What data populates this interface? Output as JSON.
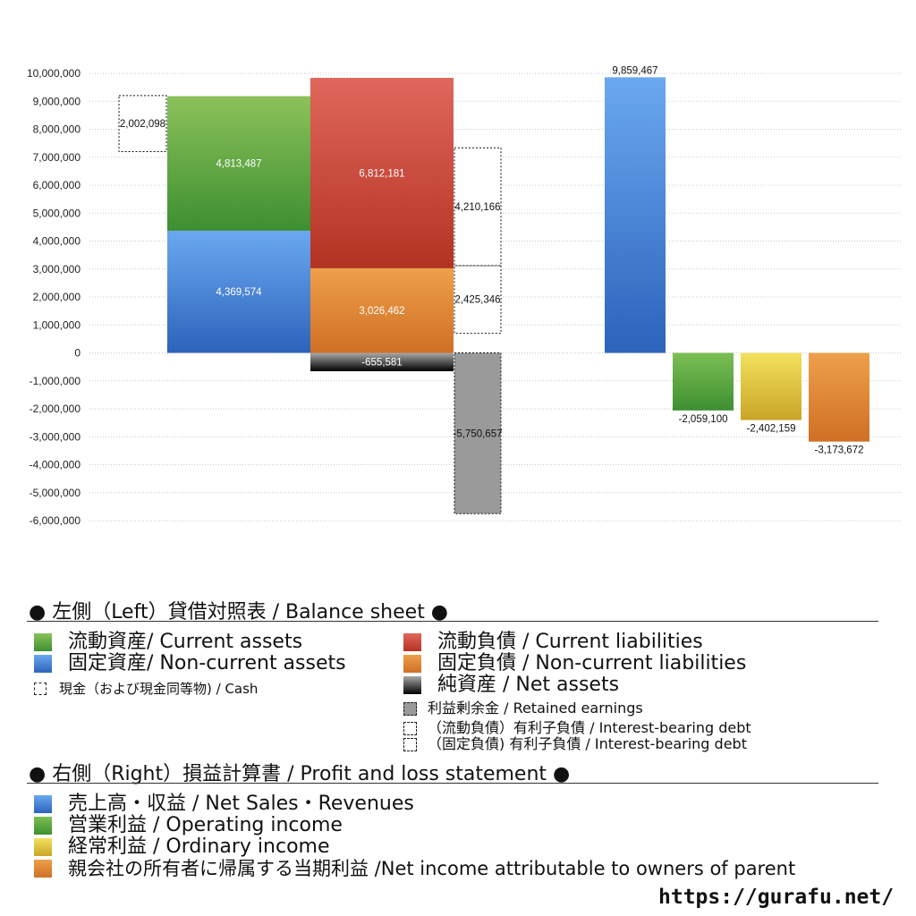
{
  "chart_data": {
    "type": "bar",
    "ylim": [
      -6000000,
      10000000
    ],
    "ytick_step": 1000000,
    "grid": true,
    "groups": [
      {
        "name": "左側 (Left) 貸借対照表 / Balance sheet",
        "stacks": [
          {
            "id": "cash",
            "segments": [
              {
                "series": "cash",
                "value": 2002098,
                "base": 7200000,
                "label": "2,002,098"
              }
            ]
          },
          {
            "id": "assets",
            "segments": [
              {
                "series": "noncurrent_assets",
                "value": 4369574,
                "base": 0,
                "label": "4,369,574"
              },
              {
                "series": "current_assets",
                "value": 4813487,
                "base": 4369574,
                "label": "4,813,487"
              }
            ]
          },
          {
            "id": "liabilities",
            "segments": [
              {
                "series": "noncurrent_liabilities",
                "value": 3026462,
                "base": 0,
                "label": "3,026,462"
              },
              {
                "series": "current_liabilities",
                "value": 6812181,
                "base": 3026462,
                "label": "6,812,181"
              },
              {
                "series": "net_assets",
                "value": -655581,
                "base": 0,
                "label": "-655,581"
              }
            ]
          },
          {
            "id": "debt",
            "segments": [
              {
                "series": "ib_debt_noncurrent",
                "value": 2425346,
                "base": 700000,
                "label": "2,425,346"
              },
              {
                "series": "ib_debt_current",
                "value": 4210166,
                "base": 3125346,
                "label": "4,210,166"
              },
              {
                "series": "retained_earnings",
                "value": -5750657,
                "base": 0,
                "label": "-5,750,657"
              }
            ]
          }
        ]
      },
      {
        "name": "右側 (Right) 損益計算書 / Profit and loss statement",
        "stacks": [
          {
            "id": "sales",
            "segments": [
              {
                "series": "net_sales",
                "value": 9859467,
                "base": 0,
                "label": "9,859,467"
              }
            ]
          },
          {
            "id": "op",
            "segments": [
              {
                "series": "operating_income",
                "value": -2059100,
                "base": 0,
                "label": "-2,059,100"
              }
            ]
          },
          {
            "id": "ord",
            "segments": [
              {
                "series": "ordinary_income",
                "value": -2402159,
                "base": 0,
                "label": "-2,402,159"
              }
            ]
          },
          {
            "id": "ni",
            "segments": [
              {
                "series": "net_income_parent",
                "value": -3173672,
                "base": 0,
                "label": "-3,173,672"
              }
            ]
          }
        ]
      }
    ],
    "series_colors": {
      "current_assets": [
        "#8cc25a",
        "#3d8f31"
      ],
      "noncurrent_assets": [
        "#6aa8f0",
        "#2d63bb"
      ],
      "current_liabilities": [
        "#e0675c",
        "#b33322"
      ],
      "noncurrent_liabilities": [
        "#eea04a",
        "#cf6f25"
      ],
      "net_assets": [
        "#a9a9a9",
        "#000000"
      ],
      "retained_earnings": [
        "#9a9a9a",
        "#9a9a9a"
      ],
      "net_sales": [
        "#6aa8f0",
        "#2d63bb"
      ],
      "operating_income": [
        "#7cbf53",
        "#3d8f31"
      ],
      "ordinary_income": [
        "#f2e15e",
        "#c9a526"
      ],
      "net_income_parent": [
        "#eea04a",
        "#cf6f25"
      ]
    }
  },
  "legend": {
    "left_title": "● 左側（Left）貸借対照表 / Balance sheet ●",
    "right_title": "● 右側（Right）損益計算書 / Profit and loss statement ●",
    "current_assets": "流動資産/ Current assets",
    "noncurrent_assets": "固定資産/ Non-current assets",
    "cash": "現金（および現金同等物) / Cash",
    "current_liabilities": "流動負債 /  Current liabilities",
    "noncurrent_liabilities": "固定負債 / Non-current liabilities",
    "net_assets": "純資産 / Net assets",
    "retained_earnings": "利益剰余金 / Retained earnings",
    "ib_debt_current": "（流動負債）有利子負債 / Interest-bearing debt",
    "ib_debt_noncurrent": "（固定負債) 有利子負債 / Interest-bearing debt",
    "net_sales": "売上高・収益 / Net Sales・Revenues",
    "operating_income": "営業利益 / Operating income",
    "ordinary_income": "経常利益 / Ordinary income",
    "net_income_parent": "親会社の所有者に帰属する当期利益 /Net income attributable to owners of parent"
  },
  "site_url": "https://gurafu.net/"
}
